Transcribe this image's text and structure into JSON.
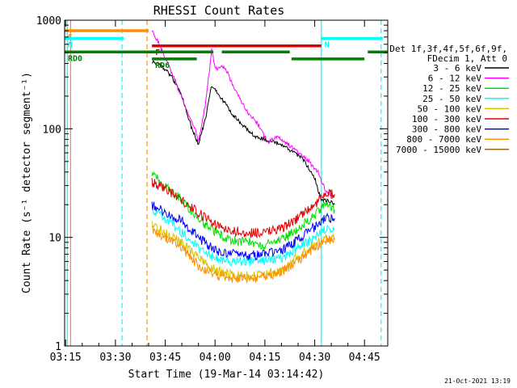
{
  "chart_data": {
    "type": "line",
    "title": "RHESSI Count Rates",
    "xlabel": "Start Time (19-Mar-14 03:14:42)",
    "ylabel": "Count Rate (s⁻¹ detector segment⁻¹)",
    "yscale": "log",
    "ylim": [
      1,
      1000
    ],
    "xlim": [
      "03:14:42",
      "04:52:00"
    ],
    "grid": false,
    "x_ticks": [
      "03:15",
      "03:30",
      "03:45",
      "04:00",
      "04:15",
      "04:30",
      "04:45"
    ],
    "y_ticks": [
      "1",
      "10",
      "100",
      "1000"
    ],
    "legend": {
      "placement": "right",
      "header": [
        "Det 1f,3f,4f,5f,6f,9f,",
        "FDecim 1, Att 0"
      ],
      "entries": [
        {
          "label": "3 - 6 keV",
          "color": "#000000"
        },
        {
          "label": "6 - 12 keV",
          "color": "#ff00ff"
        },
        {
          "label": "12 - 25 keV",
          "color": "#00e000"
        },
        {
          "label": "25 - 50 keV",
          "color": "#00ffff"
        },
        {
          "label": "50 - 100 keV",
          "color": "#d8c000"
        },
        {
          "label": "100 - 300 keV",
          "color": "#e00000"
        },
        {
          "label": "300 - 800 keV",
          "color": "#0000ff"
        },
        {
          "label": "800 - 7000 keV",
          "color": "#ff9000"
        },
        {
          "label": "7000 - 15000 keV",
          "color": "#9a6a1a"
        }
      ]
    },
    "series": [
      {
        "name": "3 - 6 keV",
        "color": "#000000",
        "x": [
          "03:41",
          "03:44",
          "03:47",
          "03:50",
          "03:53",
          "03:55",
          "03:57",
          "03:59",
          "04:02",
          "04:05",
          "04:08",
          "04:12",
          "04:15",
          "04:18",
          "04:22",
          "04:26",
          "04:30",
          "04:32",
          "04:34",
          "04:36"
        ],
        "y": [
          420,
          380,
          300,
          200,
          100,
          72,
          120,
          250,
          190,
          140,
          110,
          85,
          80,
          75,
          65,
          55,
          35,
          22,
          22,
          20
        ]
      },
      {
        "name": "6 - 12 keV",
        "color": "#ff00ff",
        "x": [
          "03:41",
          "03:43",
          "03:45",
          "03:48",
          "03:51",
          "03:54",
          "03:55",
          "03:57",
          "03:59",
          "04:00",
          "04:03",
          "04:06",
          "04:10",
          "04:13",
          "04:16",
          "04:19",
          "04:23",
          "04:27",
          "04:31",
          "04:33",
          "04:35"
        ],
        "y": [
          800,
          620,
          450,
          280,
          160,
          100,
          75,
          160,
          530,
          360,
          370,
          230,
          140,
          110,
          75,
          85,
          68,
          55,
          40,
          28,
          24
        ]
      },
      {
        "name": "12 - 25 keV",
        "color": "#00e000",
        "x": [
          "03:41",
          "03:45",
          "03:50",
          "03:55",
          "04:00",
          "04:05",
          "04:10",
          "04:15",
          "04:20",
          "04:25",
          "04:30",
          "04:33",
          "04:36"
        ],
        "y": [
          38,
          30,
          22,
          15,
          11,
          9.5,
          9,
          8.5,
          9.5,
          12,
          16,
          20,
          18
        ]
      },
      {
        "name": "25 - 50 keV",
        "color": "#00ffff",
        "x": [
          "03:41",
          "03:45",
          "03:50",
          "03:55",
          "04:00",
          "04:05",
          "04:10",
          "04:15",
          "04:20",
          "04:25",
          "04:30",
          "04:33",
          "04:36"
        ],
        "y": [
          18,
          15,
          11,
          8,
          6.5,
          6,
          6,
          6,
          6.5,
          8,
          10,
          12,
          12
        ]
      },
      {
        "name": "50 - 100 keV",
        "color": "#d8c000",
        "x": [
          "03:41",
          "03:45",
          "03:50",
          "03:55",
          "04:00",
          "04:05",
          "04:10",
          "04:15",
          "04:20",
          "04:25",
          "04:30",
          "04:33",
          "04:36"
        ],
        "y": [
          13,
          11,
          9,
          6.5,
          5,
          4.5,
          4.4,
          4.5,
          5,
          6.5,
          8.5,
          10,
          10
        ]
      },
      {
        "name": "100 - 300 keV",
        "color": "#e00000",
        "x": [
          "03:41",
          "03:45",
          "03:50",
          "03:55",
          "04:00",
          "04:05",
          "04:10",
          "04:15",
          "04:20",
          "04:25",
          "04:30",
          "04:33",
          "04:36"
        ],
        "y": [
          32,
          28,
          22,
          17,
          13,
          11.5,
          11,
          11,
          12,
          15,
          20,
          25,
          25
        ]
      },
      {
        "name": "300 - 800 keV",
        "color": "#0000ff",
        "x": [
          "03:41",
          "03:45",
          "03:50",
          "03:55",
          "04:00",
          "04:05",
          "04:10",
          "04:15",
          "04:20",
          "04:25",
          "04:30",
          "04:33",
          "04:36"
        ],
        "y": [
          20,
          17,
          14,
          10,
          7.5,
          7,
          6.8,
          7,
          7.5,
          9.5,
          12.5,
          15,
          15
        ]
      },
      {
        "name": "800 - 7000 keV",
        "color": "#ff9000",
        "x": [
          "03:41",
          "03:45",
          "03:50",
          "03:55",
          "04:00",
          "04:05",
          "04:10",
          "04:15",
          "04:20",
          "04:25",
          "04:30",
          "04:33",
          "04:36"
        ],
        "y": [
          12,
          10,
          8,
          5.5,
          4.5,
          4.2,
          4.2,
          4.3,
          4.8,
          6.2,
          8,
          9.5,
          9.5
        ]
      }
    ],
    "flags": [
      {
        "label": "S",
        "color": "#ff9000",
        "x": [
          "03:14:42",
          "03:40:00"
        ],
        "y": 800
      },
      {
        "label": "N",
        "color": "#00ffff",
        "x": [
          "03:14:42",
          "03:32:30"
        ],
        "y": 680
      },
      {
        "label": "N",
        "color": "#00ffff",
        "x": [
          "04:32:00",
          "04:50:30"
        ],
        "y": 680
      },
      {
        "label": "F",
        "color": "#e00000",
        "x": [
          "03:41:00",
          "04:32:00"
        ],
        "y": 580
      },
      {
        "label": "RD0",
        "color": "#008000",
        "x": [
          "03:14:42",
          "03:59:30"
        ],
        "y": 510
      },
      {
        "label": "",
        "color": "#008000",
        "x": [
          "04:02:00",
          "04:22:30"
        ],
        "y": 510
      },
      {
        "label": "",
        "color": "#008000",
        "x": [
          "04:46:00",
          "04:52:00"
        ],
        "y": 510
      },
      {
        "label": "RD6",
        "color": "#008000",
        "x": [
          "03:41:00",
          "03:54:30"
        ],
        "y": 440
      },
      {
        "label": "",
        "color": "#008000",
        "x": [
          "04:23:00",
          "04:45:00"
        ],
        "y": 440
      }
    ],
    "vlines": [
      {
        "x": "03:15:30",
        "color": "#00ffff",
        "style": "solid"
      },
      {
        "x": "03:16:30",
        "color": "#ff9000",
        "style": "solid"
      },
      {
        "x": "03:32:00",
        "color": "#00ffff",
        "style": "dashed"
      },
      {
        "x": "03:39:30",
        "color": "#ff9000",
        "style": "dashed"
      },
      {
        "x": "04:32:00",
        "color": "#00ffff",
        "style": "solid"
      },
      {
        "x": "04:50:00",
        "color": "#00ffff",
        "style": "dashed"
      }
    ]
  },
  "timestamp": "21-Oct-2021 13:19"
}
